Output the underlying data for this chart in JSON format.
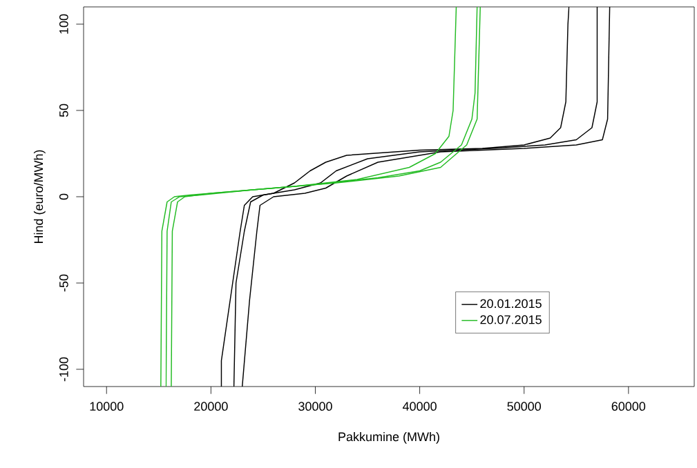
{
  "chart_data": {
    "type": "line",
    "xlabel": "Pakkumine (MWh)",
    "ylabel": "Hind (euro/MWh)",
    "xlim": [
      7800,
      66300
    ],
    "ylim": [
      -110,
      110
    ],
    "xticks": [
      10000,
      20000,
      30000,
      40000,
      50000,
      60000
    ],
    "yticks": [
      -100,
      -50,
      0,
      50,
      100
    ],
    "legend": "bottom right",
    "grid": false,
    "marker": "none",
    "line_style": "solid",
    "series": [
      {
        "name": "20.01.2015",
        "color": "#000000",
        "x": [
          21000,
          21000,
          22800,
          23200,
          24000,
          26000,
          28000,
          29500,
          31000,
          33000,
          40000,
          46000,
          50000,
          52500,
          53500,
          54000,
          54200,
          54300
        ],
        "values": [
          -110,
          -95,
          -20,
          -5,
          0,
          2,
          8,
          15,
          20,
          24,
          27,
          28,
          30,
          34,
          40,
          55,
          100,
          110
        ]
      },
      {
        "color": "#000000",
        "x": [
          22200,
          22400,
          23200,
          23800,
          25000,
          28000,
          30500,
          32000,
          35000,
          40000,
          47000,
          52000,
          55000,
          56500,
          57000,
          57000
        ],
        "values": [
          -110,
          -50,
          -20,
          -3,
          1,
          4,
          8,
          15,
          22,
          26,
          28,
          30,
          33,
          40,
          55,
          110
        ]
      },
      {
        "color": "#000000",
        "x": [
          23000,
          23700,
          24400,
          24700,
          26000,
          29000,
          31000,
          33000,
          36000,
          42000,
          50000,
          55000,
          57500,
          58000,
          58200
        ],
        "values": [
          -110,
          -60,
          -20,
          -5,
          0,
          2,
          5,
          12,
          20,
          26,
          28,
          30,
          33,
          45,
          110
        ]
      },
      {
        "name": "20.07.2015",
        "color": "#22bb22",
        "x": [
          15200,
          15300,
          15800,
          16500,
          18000,
          22000,
          28000,
          34000,
          39000,
          41500,
          42800,
          43200,
          43500
        ],
        "values": [
          -110,
          -20,
          -3,
          0,
          1,
          3,
          6,
          10,
          17,
          25,
          35,
          50,
          110
        ]
      },
      {
        "color": "#22bb22",
        "x": [
          15700,
          15800,
          16200,
          17000,
          19000,
          24000,
          30000,
          36000,
          40000,
          42000,
          44000,
          45000,
          45300,
          45500
        ],
        "values": [
          -110,
          -20,
          -3,
          0,
          1,
          4,
          7,
          11,
          15,
          20,
          30,
          45,
          60,
          110
        ]
      },
      {
        "color": "#22bb22",
        "x": [
          16200,
          16300,
          16800,
          17500,
          20000,
          26000,
          32000,
          38000,
          42000,
          44500,
          45500,
          45800
        ],
        "values": [
          -110,
          -20,
          -3,
          0,
          2,
          5,
          8,
          12,
          17,
          30,
          45,
          110
        ]
      }
    ]
  }
}
